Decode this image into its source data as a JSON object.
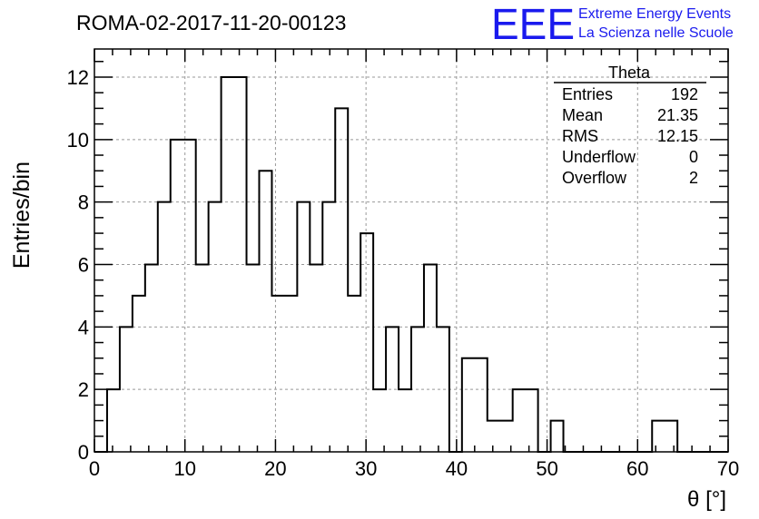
{
  "header": {
    "run_title": "ROMA-02-2017-11-20-00123",
    "logo_text": "EEE",
    "logo_line1": "Extreme Energy Events",
    "logo_line2": "La Scienza nelle Scuole",
    "logo_color": "#1a1aee"
  },
  "stats": {
    "title": "Theta",
    "rows": [
      {
        "label": "Entries",
        "value": "192"
      },
      {
        "label": "Mean",
        "value": "21.35"
      },
      {
        "label": "RMS",
        "value": "12.15"
      },
      {
        "label": "Underflow",
        "value": "0"
      },
      {
        "label": "Overflow",
        "value": "2"
      }
    ]
  },
  "chart_data": {
    "type": "bar",
    "style": "step-histogram",
    "xlabel": "θ [°]",
    "ylabel": "Entries/bin",
    "xlim": [
      0,
      70
    ],
    "ylim": [
      0,
      12.9
    ],
    "bin_width": 1.4,
    "x_ticks": [
      0,
      10,
      20,
      30,
      40,
      50,
      60,
      70
    ],
    "y_ticks": [
      0,
      2,
      4,
      6,
      8,
      10,
      12
    ],
    "grid": true,
    "values": [
      0,
      2,
      4,
      5,
      6,
      8,
      10,
      10,
      6,
      8,
      12,
      12,
      6,
      9,
      5,
      5,
      8,
      6,
      8,
      11,
      5,
      7,
      2,
      4,
      2,
      4,
      6,
      4,
      0,
      3,
      3,
      1,
      1,
      2,
      2,
      0,
      1,
      0,
      0,
      0,
      0,
      0,
      0,
      0,
      1,
      1,
      0,
      0,
      0,
      0
    ]
  }
}
